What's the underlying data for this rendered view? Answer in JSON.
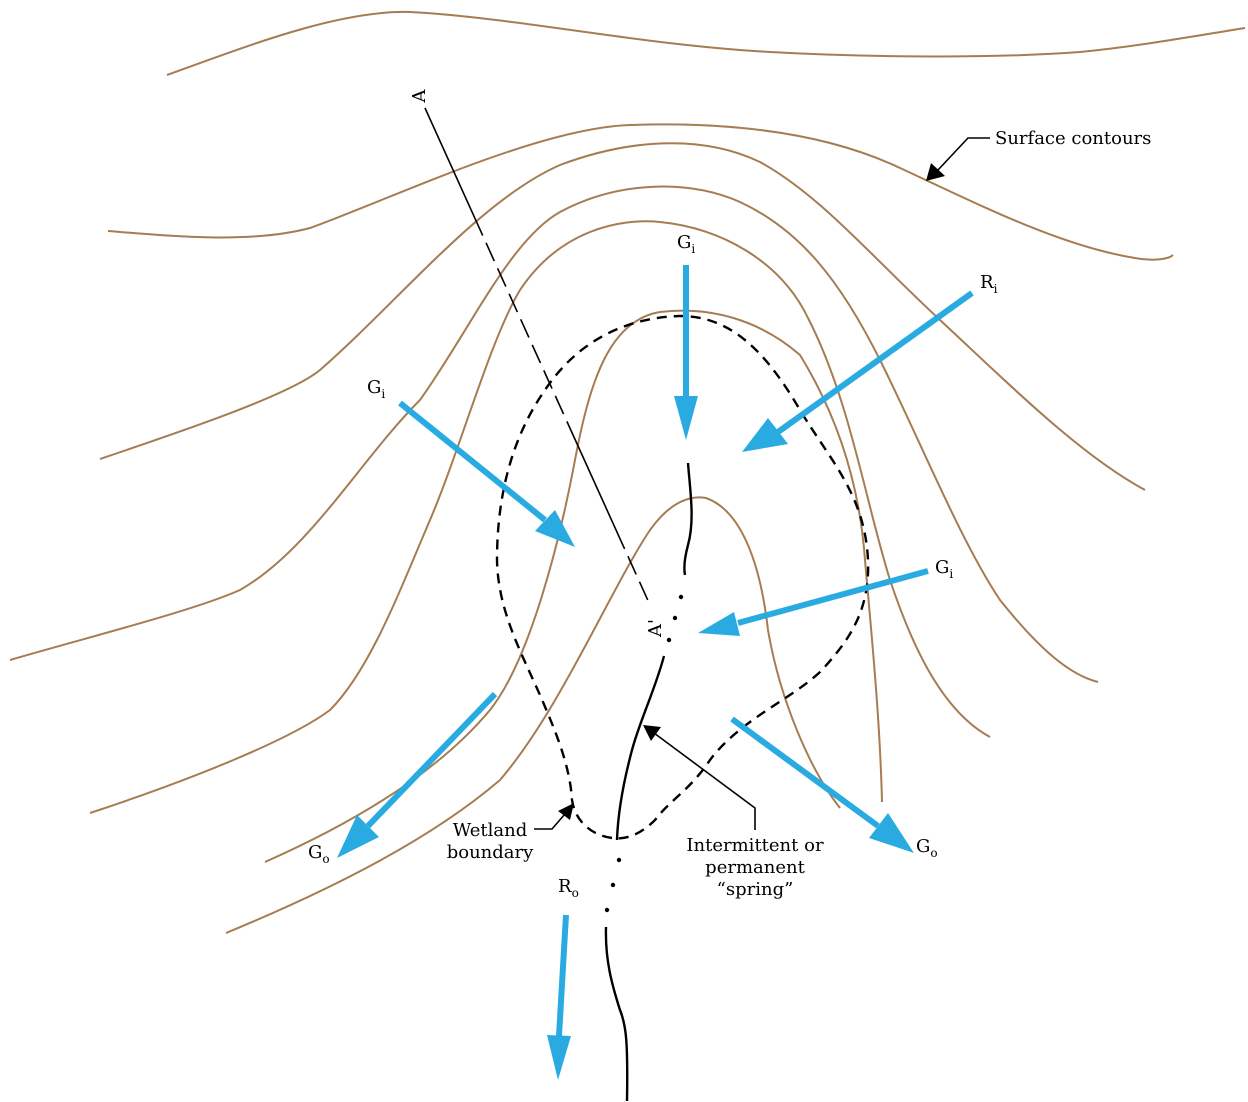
{
  "colors": {
    "contour": "#a67c52",
    "flow_arrow": "#29abe2",
    "line": "#000000",
    "background": "#ffffff"
  },
  "labels": {
    "surface_contours": "Surface contours",
    "wetland_boundary": [
      "Wetland",
      "boundary"
    ],
    "spring": [
      "Intermittent or",
      "permanent",
      "“spring”"
    ],
    "section_start": "A",
    "section_end": "A'"
  },
  "flows": {
    "gi_main": "G",
    "gi_sub": "i",
    "go_main": "G",
    "go_sub": "o",
    "ri_main": "R",
    "ri_sub": "i",
    "ro_main": "R",
    "ro_sub": "o"
  }
}
